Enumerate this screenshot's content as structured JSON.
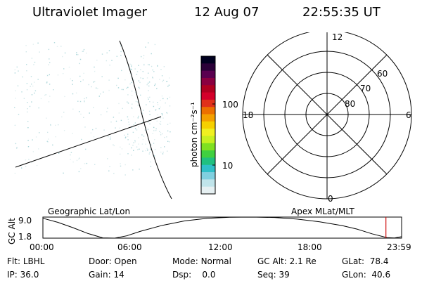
{
  "header": {
    "instrument": "Ultraviolet Imager",
    "date": "12 Aug 07",
    "time": "22:55:35 UT"
  },
  "colorbar": {
    "unit_label": "photon cm⁻²s⁻¹",
    "ticks": [
      "100",
      "10"
    ],
    "colors": [
      "#000020",
      "#2a0038",
      "#5a0050",
      "#8a0040",
      "#b00020",
      "#d4002a",
      "#e0301a",
      "#ec7000",
      "#f4a000",
      "#f6d000",
      "#f0f020",
      "#c8f020",
      "#80e020",
      "#40d040",
      "#20c080",
      "#30c0c8",
      "#80d0e0",
      "#c0e4ea",
      "#e6f0f2"
    ]
  },
  "polar": {
    "mlt_labels": [
      "12",
      "18",
      "6",
      "0"
    ],
    "lat_labels": [
      "60",
      "70",
      "80"
    ]
  },
  "timeline": {
    "left_title": "Geographic Lat/Lon",
    "right_title": "Apex MLat/MLT",
    "y_axis_label": "GC Alt",
    "y_ticks": [
      "9.0",
      "1.8"
    ],
    "x_ticks": [
      "00:00",
      "06:00",
      "12:00",
      "18:00",
      "23:59"
    ],
    "marker_color": "#d01010"
  },
  "chart_data": {
    "type": "line",
    "title": "",
    "xlabel": "",
    "ylabel": "GC Alt",
    "x_ticks": [
      "00:00",
      "06:00",
      "12:00",
      "18:00",
      "23:59"
    ],
    "ylim": [
      1.8,
      9.0
    ],
    "x_hours": [
      0,
      1,
      2,
      3,
      4,
      4.8,
      5.6,
      6.5,
      8,
      9.5,
      11,
      12.5,
      14,
      15.5,
      17,
      18.5,
      20,
      21,
      22,
      23,
      23.5,
      23.98
    ],
    "gc_alt": [
      8.6,
      7.2,
      5.4,
      3.4,
      1.9,
      1.8,
      2.6,
      4.1,
      6.2,
      7.7,
      8.6,
      8.95,
      9.0,
      8.85,
      8.3,
      7.4,
      6.1,
      4.9,
      3.3,
      2.0,
      1.85,
      2.3
    ],
    "current_time_hours": 22.93
  },
  "info": {
    "row1": [
      {
        "label": "Flt:",
        "value": "LBHL"
      },
      {
        "label": "Door:",
        "value": "Open"
      },
      {
        "label": "Mode:",
        "value": "Normal"
      },
      {
        "label": "GC Alt:",
        "value": "2.1 Re"
      },
      {
        "label": "GLat:",
        "value": "78.4"
      }
    ],
    "row2": [
      {
        "label": "IP:",
        "value": "36.0"
      },
      {
        "label": "Gain:",
        "value": "14"
      },
      {
        "label": "Dsp:",
        "value": "0.0"
      },
      {
        "label": "Seq:",
        "value": "39"
      },
      {
        "label": "GLon:",
        "value": "40.6"
      }
    ]
  }
}
